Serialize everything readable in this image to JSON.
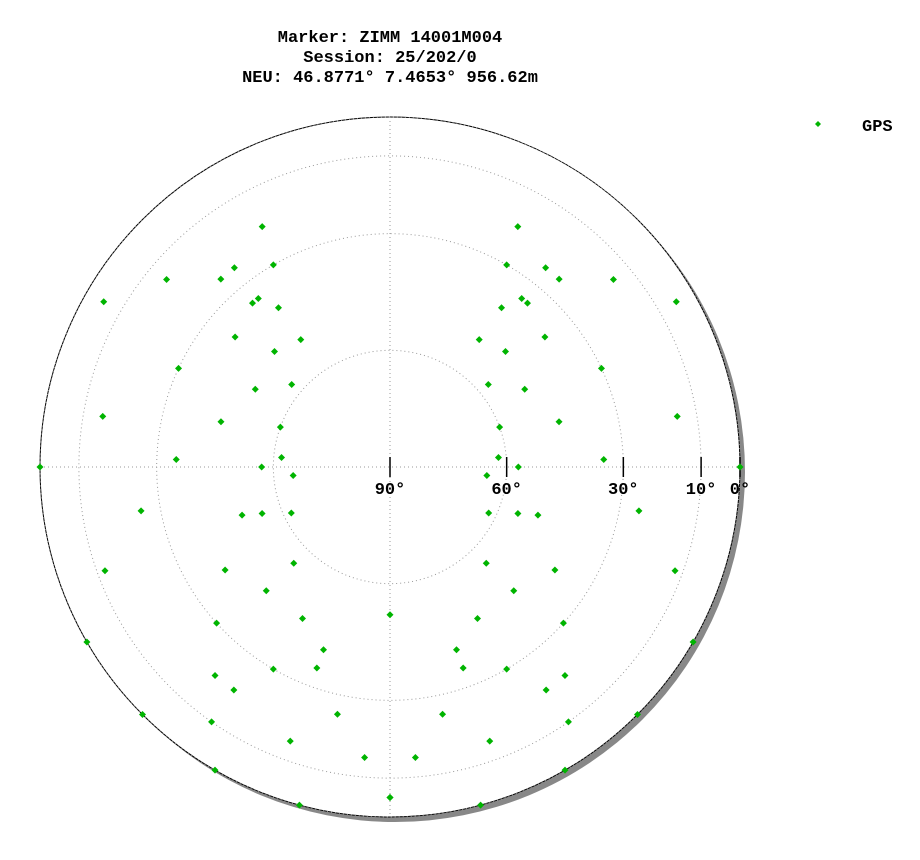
{
  "chart_data": {
    "type": "skyplot",
    "title": [
      "Marker: ZIMM 14001M004",
      "Session: 25/202/0",
      "NEU: 46.8771° 7.4653° 956.62m"
    ],
    "rlim": [
      90,
      0
    ],
    "rticks": [
      {
        "value": 90,
        "label": "90°"
      },
      {
        "value": 60,
        "label": "60°"
      },
      {
        "value": 30,
        "label": "30°"
      },
      {
        "value": 10,
        "label": "10°"
      },
      {
        "value": 0,
        "label": "0°"
      }
    ],
    "grid": true,
    "legend": "top-right",
    "series": [
      {
        "name": "GPS",
        "color": "#00b400",
        "azimuth": [
          150,
          145,
          140,
          132,
          122,
          108,
          90,
          70,
          50,
          35,
          210,
          215,
          220,
          228,
          238,
          252,
          270,
          290,
          310,
          325,
          180,
          175,
          168,
          160,
          150,
          135,
          115,
          95,
          180,
          185,
          192,
          200,
          210,
          225,
          245,
          265,
          120,
          110,
          100,
          88,
          75,
          60,
          45,
          35,
          30,
          28,
          240,
          250,
          260,
          272,
          285,
          300,
          315,
          325,
          330,
          332,
          165,
          160,
          150,
          135,
          110,
          85,
          195,
          200,
          210,
          225,
          250,
          275,
          90,
          80,
          65,
          50,
          40,
          38,
          270,
          280,
          295,
          310,
          320,
          322,
          135,
          145,
          160,
          180,
          200,
          215,
          225,
          60,
          50,
          42,
          38,
          300,
          310,
          318,
          322
        ],
        "elevation": [
          0,
          10,
          20,
          30,
          40,
          50,
          57,
          60,
          57,
          50,
          0,
          10,
          20,
          30,
          40,
          50,
          57,
          60,
          57,
          50,
          5,
          15,
          25,
          35,
          45,
          55,
          62,
          65,
          5,
          15,
          25,
          35,
          45,
          55,
          62,
          65,
          0,
          12,
          25,
          35,
          45,
          50,
          48,
          40,
          30,
          20,
          0,
          12,
          25,
          35,
          45,
          50,
          48,
          40,
          30,
          20,
          0,
          15,
          30,
          45,
          55,
          62,
          0,
          15,
          30,
          45,
          55,
          62,
          0,
          15,
          30,
          38,
          35,
          25,
          0,
          15,
          30,
          38,
          35,
          25,
          0,
          20,
          40,
          52,
          40,
          20,
          0,
          5,
          15,
          25,
          35,
          5,
          15,
          25,
          35
        ]
      }
    ]
  }
}
